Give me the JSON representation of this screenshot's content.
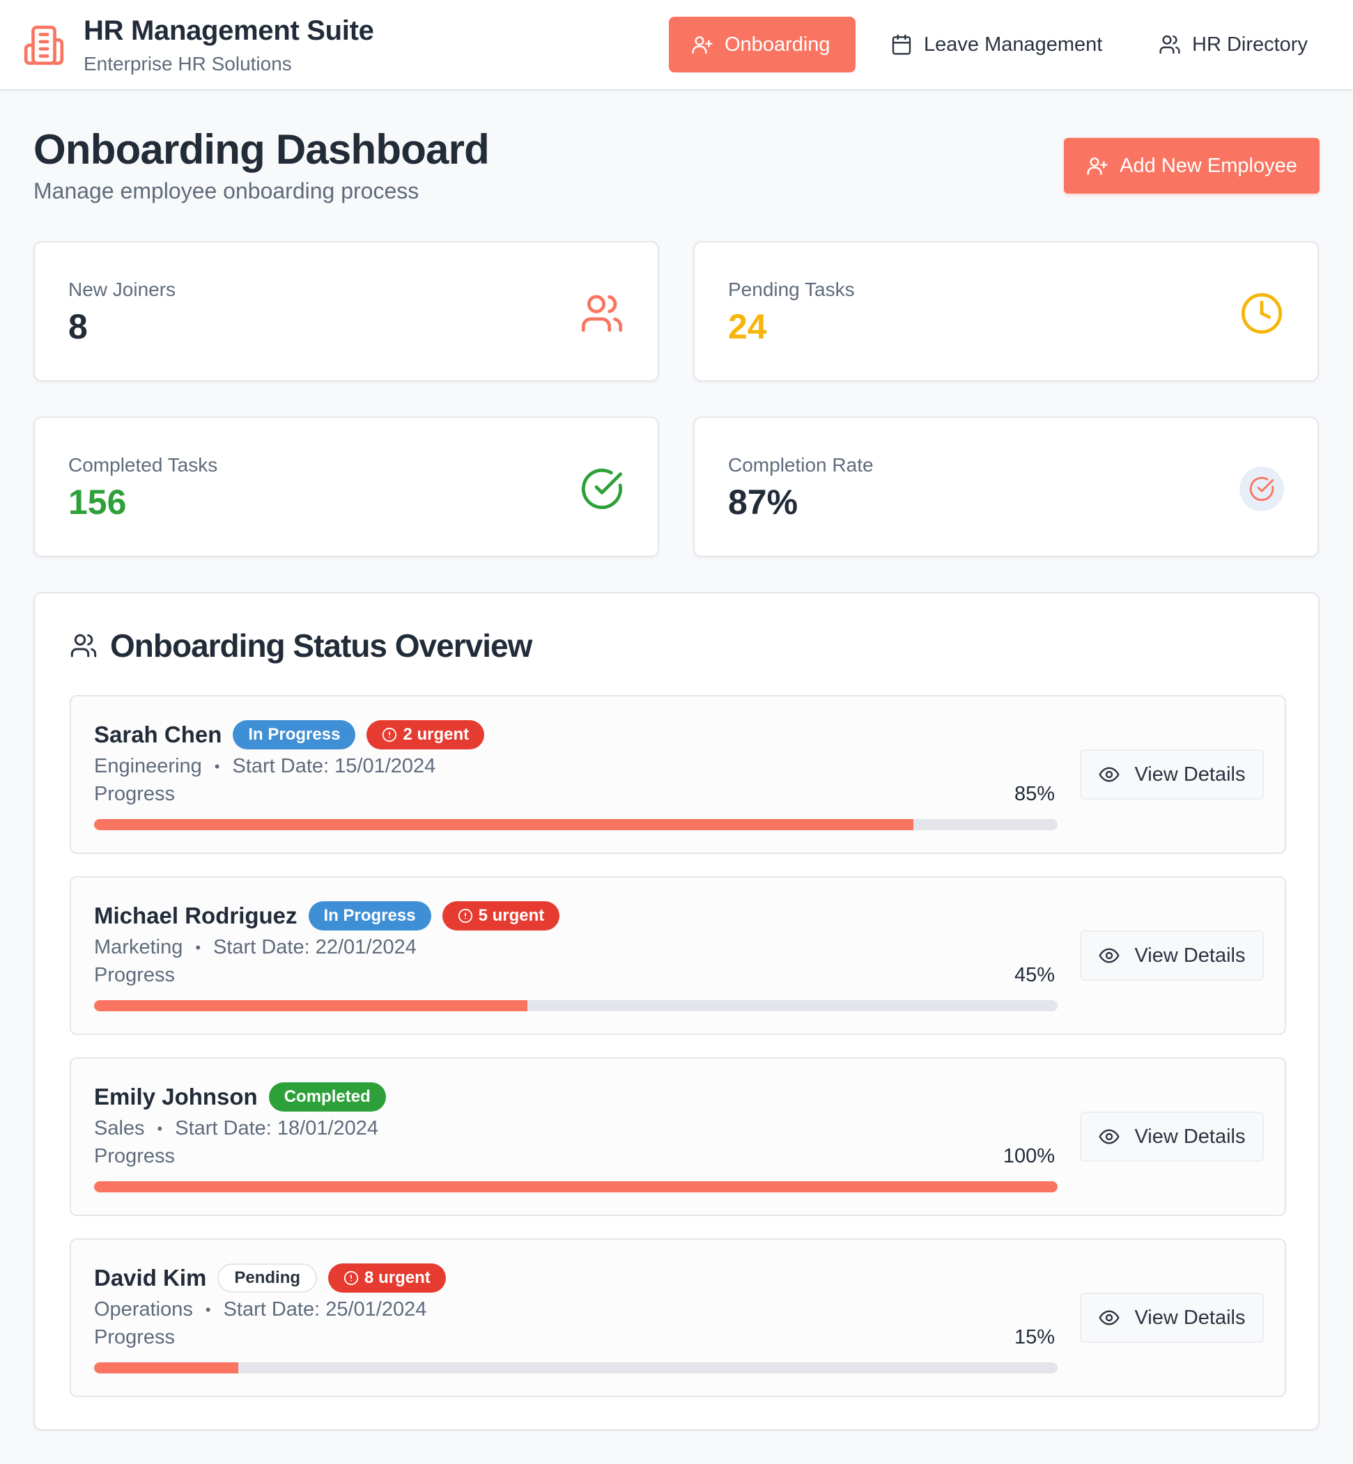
{
  "app": {
    "title": "HR Management Suite",
    "subtitle": "Enterprise HR Solutions"
  },
  "nav": {
    "items": [
      {
        "label": "Onboarding",
        "icon": "user-plus-icon",
        "active": true
      },
      {
        "label": "Leave Management",
        "icon": "calendar-icon",
        "active": false
      },
      {
        "label": "HR Directory",
        "icon": "users-icon",
        "active": false
      }
    ]
  },
  "page": {
    "title": "Onboarding Dashboard",
    "subtitle": "Manage employee onboarding process",
    "add_button": "Add New Employee"
  },
  "stats": [
    {
      "label": "New Joiners",
      "value": "8",
      "color": "#222b38",
      "icon": "users-icon"
    },
    {
      "label": "Pending Tasks",
      "value": "24",
      "color": "#f5b50a",
      "icon": "clock-icon"
    },
    {
      "label": "Completed Tasks",
      "value": "156",
      "color": "#2ea03a",
      "icon": "check-circle-icon"
    },
    {
      "label": "Completion Rate",
      "value": "87%",
      "color": "#222b38",
      "icon": "check-circle-icon"
    }
  ],
  "overview": {
    "title": "Onboarding Status Overview",
    "view_label": "View Details",
    "progress_label": "Progress",
    "employees": [
      {
        "name": "Sarah Chen",
        "status": "In Progress",
        "urgent": "2 urgent",
        "department": "Engineering",
        "start_date": "Start Date: 15/01/2024",
        "progress_text": "85%",
        "progress": 0.85
      },
      {
        "name": "Michael Rodriguez",
        "status": "In Progress",
        "urgent": "5 urgent",
        "department": "Marketing",
        "start_date": "Start Date: 22/01/2024",
        "progress_text": "45%",
        "progress": 0.45
      },
      {
        "name": "Emily Johnson",
        "status": "Completed",
        "urgent": "",
        "department": "Sales",
        "start_date": "Start Date: 18/01/2024",
        "progress_text": "100%",
        "progress": 1.0
      },
      {
        "name": "David Kim",
        "status": "Pending",
        "urgent": "8 urgent",
        "department": "Operations",
        "start_date": "Start Date: 25/01/2024",
        "progress_text": "15%",
        "progress": 0.15
      }
    ]
  },
  "colors": {
    "accent": "#f97561",
    "in_progress": "#3f8fd6",
    "completed": "#2ea03a",
    "urgent": "#e53b30"
  }
}
